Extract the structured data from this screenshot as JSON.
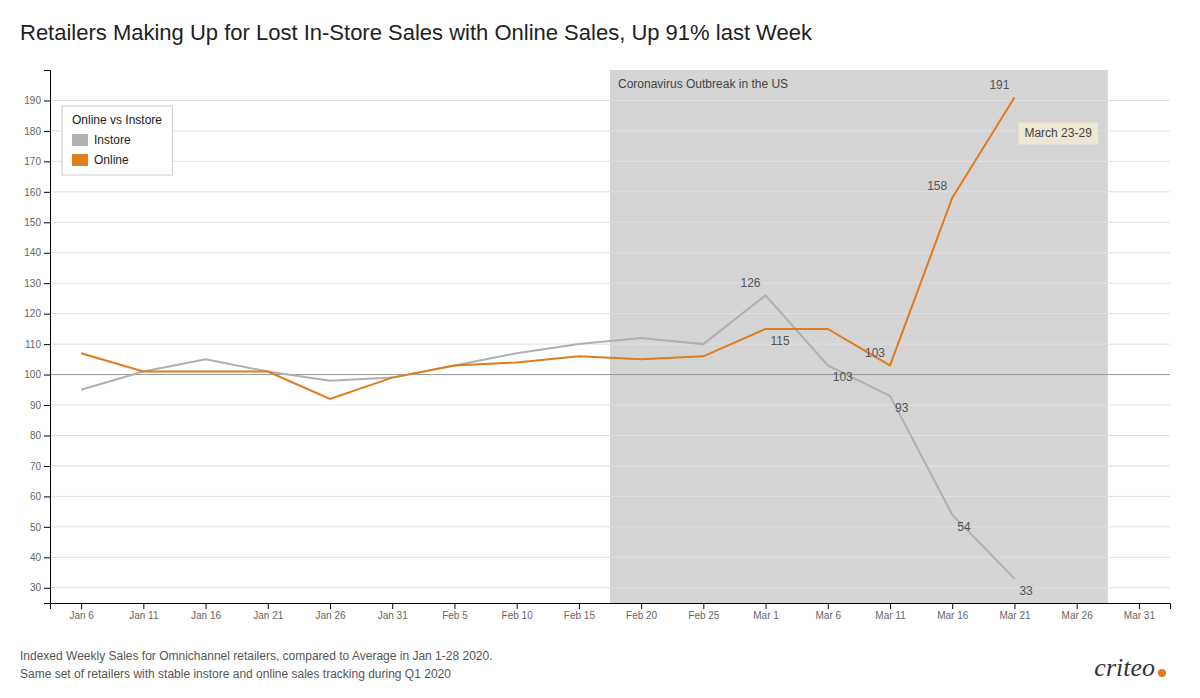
{
  "chart_data": {
    "type": "line",
    "title": "Retailers Making Up for Lost In-Store Sales with Online Sales, Up 91% last Week",
    "categories": [
      "Jan 6",
      "Jan 11",
      "Jan 16",
      "Jan 21",
      "Jan 26",
      "Jan 31",
      "Feb 5",
      "Feb 10",
      "Feb 15",
      "Feb 20",
      "Feb 25",
      "Mar 1",
      "Mar 6",
      "Mar 11",
      "Mar 16",
      "Mar 21",
      "Mar 26",
      "Mar 31"
    ],
    "series": [
      {
        "name": "Instore",
        "color": "#b0b0b0",
        "values": [
          95,
          101,
          105,
          101,
          98,
          99,
          103,
          107,
          110,
          112,
          110,
          126,
          103,
          93,
          54,
          33,
          null,
          null
        ],
        "value_labels": [
          null,
          null,
          null,
          null,
          null,
          null,
          null,
          null,
          null,
          null,
          null,
          "126",
          "103",
          "93",
          "54",
          "33",
          null,
          null
        ]
      },
      {
        "name": "Online",
        "color": "#e07b20",
        "values": [
          107,
          101,
          101,
          101,
          92,
          99,
          103,
          104,
          106,
          105,
          106,
          115,
          115,
          103,
          158,
          191,
          null,
          null
        ],
        "value_labels": [
          null,
          null,
          null,
          null,
          null,
          null,
          null,
          null,
          null,
          null,
          null,
          "115",
          null,
          "103",
          "158",
          "191",
          null,
          null
        ]
      }
    ],
    "ylim": [
      25,
      200
    ],
    "yticks": [
      30,
      40,
      50,
      60,
      70,
      80,
      90,
      100,
      110,
      120,
      130,
      140,
      150,
      160,
      170,
      180,
      190
    ],
    "grid": true,
    "legend": "upper left",
    "legend_title": "Online vs Instore",
    "reference_line": 100,
    "annotations": [
      {
        "text": "Coronavirus Outbreak in the US",
        "from": "Feb 20",
        "to": "Mar 26"
      },
      {
        "text": "March 23-29",
        "x": "Mar 21"
      }
    ],
    "footnotes": [
      "Indexed Weekly Sales for Omnichannel retailers, compared to Average in Jan 1-28 2020.",
      "Same set of retailers with stable instore and online sales tracking during Q1 2020"
    ],
    "logo": "criteo"
  }
}
